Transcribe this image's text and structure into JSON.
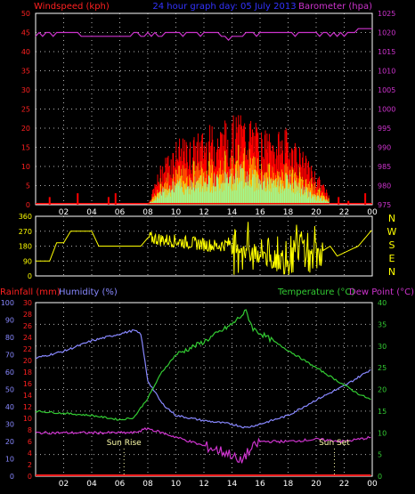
{
  "header": {
    "left_label": "Windspeed (kph)",
    "center_label": "24 hour graph day: 05 July 2013",
    "right_label": "Barometer (hpa)"
  },
  "colors": {
    "background": "#000000",
    "axis_border": "#ffffff",
    "grid": "#ffffff",
    "wind_axis": "#ff2020",
    "baro_axis": "#cc33cc",
    "header_center": "#3333ff",
    "dir_axis": "#ffff00",
    "wind_speed": "#ff0000",
    "wind_gust_fill": "#ffff00",
    "wind_avg": "#ffffff",
    "wind_mid": "#99ff99",
    "barometer": "#cc33cc",
    "wind_dir": "#ffff00",
    "humidity": "#8888ff",
    "temperature": "#33cc33",
    "dew_point": "#cc33cc",
    "rainfall": "#ff2020",
    "sun": "#ffffaa"
  },
  "time_ticks": [
    "02",
    "04",
    "06",
    "08",
    "10",
    "12",
    "14",
    "16",
    "18",
    "20",
    "22",
    "00"
  ],
  "compass": [
    "N",
    "W",
    "S",
    "E",
    "N"
  ],
  "lower_labels": {
    "rainfall": "Rainfall (mm)",
    "humidity": "Humidity (%)",
    "temperature": "Temperature (°C)",
    "dew_point": "Dew Point (°C)",
    "sun_rise": "Sun Rise",
    "sun_set": "Sun Set"
  },
  "chart_data": [
    {
      "type": "line",
      "x_range": [
        0,
        24
      ],
      "series": [
        {
          "role": "wind_speed",
          "x": [
            0,
            8,
            9,
            10,
            11,
            12,
            13,
            14,
            15,
            16,
            17,
            18,
            19,
            20,
            21,
            22,
            23,
            24
          ],
          "values": [
            0,
            0,
            8,
            12,
            12,
            14,
            15,
            16,
            17,
            14,
            13,
            14,
            10,
            6,
            2,
            0,
            0,
            2
          ]
        },
        {
          "role": "wind_avg",
          "x": [
            0,
            8,
            9,
            10,
            11,
            12,
            13,
            14,
            15,
            16,
            17,
            18,
            19,
            20,
            21,
            22,
            23,
            24
          ],
          "values": [
            0,
            0,
            3,
            5,
            5,
            6,
            6,
            7,
            8,
            6,
            5,
            6,
            4,
            2,
            1,
            0,
            0,
            0
          ]
        },
        {
          "role": "barometer",
          "x": [
            0,
            2,
            4,
            6,
            8,
            10,
            12,
            14,
            16,
            18,
            20,
            22,
            24
          ],
          "values": [
            1020,
            1020,
            1019,
            1019,
            1020,
            1020,
            1020,
            1019,
            1020,
            1020,
            1020,
            1020,
            1021
          ]
        }
      ],
      "y_left": {
        "min": 0,
        "max": 50,
        "ticks": [
          0,
          5,
          10,
          15,
          20,
          25,
          30,
          35,
          40,
          45,
          50
        ]
      },
      "y_right": {
        "min": 975,
        "max": 1025,
        "ticks": [
          975,
          980,
          985,
          990,
          995,
          1000,
          1005,
          1010,
          1015,
          1020,
          1025
        ]
      },
      "grid": true
    },
    {
      "type": "line",
      "x_range": [
        0,
        24
      ],
      "series": [
        {
          "role": "wind_dir",
          "x": [
            0,
            1,
            1.5,
            2,
            2.5,
            4,
            4.5,
            7.5,
            8,
            13,
            14,
            18,
            19,
            19.5,
            21,
            21.5,
            23,
            24
          ],
          "values": [
            90,
            90,
            200,
            200,
            270,
            270,
            180,
            180,
            230,
            180,
            200,
            90,
            200,
            100,
            180,
            120,
            180,
            280
          ]
        }
      ],
      "y_left": {
        "min": 0,
        "max": 360,
        "ticks": [
          0,
          90,
          180,
          270,
          360
        ]
      },
      "grid": true
    },
    {
      "type": "line",
      "x_range": [
        0,
        24
      ],
      "series": [
        {
          "role": "humidity",
          "x": [
            0,
            2,
            4,
            6,
            7,
            7.5,
            8,
            9,
            10,
            12,
            14,
            15,
            16,
            18,
            20,
            22,
            24
          ],
          "values": [
            68,
            72,
            78,
            82,
            84,
            82,
            55,
            42,
            35,
            32,
            30,
            28,
            30,
            35,
            44,
            52,
            62
          ]
        },
        {
          "role": "temperature",
          "x": [
            0,
            2,
            4,
            6,
            7,
            8,
            9,
            10,
            12,
            14,
            15,
            15.5,
            16,
            18,
            20,
            22,
            23,
            24
          ],
          "values": [
            15,
            14.5,
            14,
            13,
            13.5,
            18,
            24,
            28,
            31,
            35,
            38,
            34,
            33,
            29,
            25,
            21,
            19,
            17.5
          ]
        },
        {
          "role": "dew_point",
          "x": [
            0,
            2,
            4,
            6,
            7,
            8,
            9,
            10,
            12,
            13,
            14,
            14.5,
            15,
            16,
            18,
            20,
            22,
            24
          ],
          "values": [
            10,
            10,
            10,
            10,
            10,
            11,
            10,
            9,
            7,
            6,
            5,
            3,
            5,
            8,
            8,
            8.5,
            8,
            9
          ]
        },
        {
          "role": "rainfall",
          "x": [
            0,
            24
          ],
          "values": [
            0,
            0
          ]
        }
      ],
      "y_left_humidity": {
        "min": 0,
        "max": 100,
        "ticks": [
          0,
          10,
          20,
          30,
          40,
          50,
          60,
          70,
          80,
          90,
          100
        ]
      },
      "y_left_rain": {
        "min": 0,
        "max": 30,
        "ticks": [
          0,
          2,
          4,
          6,
          8,
          10,
          12,
          14,
          16,
          18,
          20,
          22,
          24,
          26,
          28,
          30
        ]
      },
      "y_right": {
        "min": 0,
        "max": 40,
        "ticks": [
          0,
          5,
          10,
          15,
          20,
          25,
          30,
          35,
          40
        ]
      },
      "sun_rise_x": 6.3,
      "sun_set_x": 21.3,
      "grid": true
    }
  ]
}
